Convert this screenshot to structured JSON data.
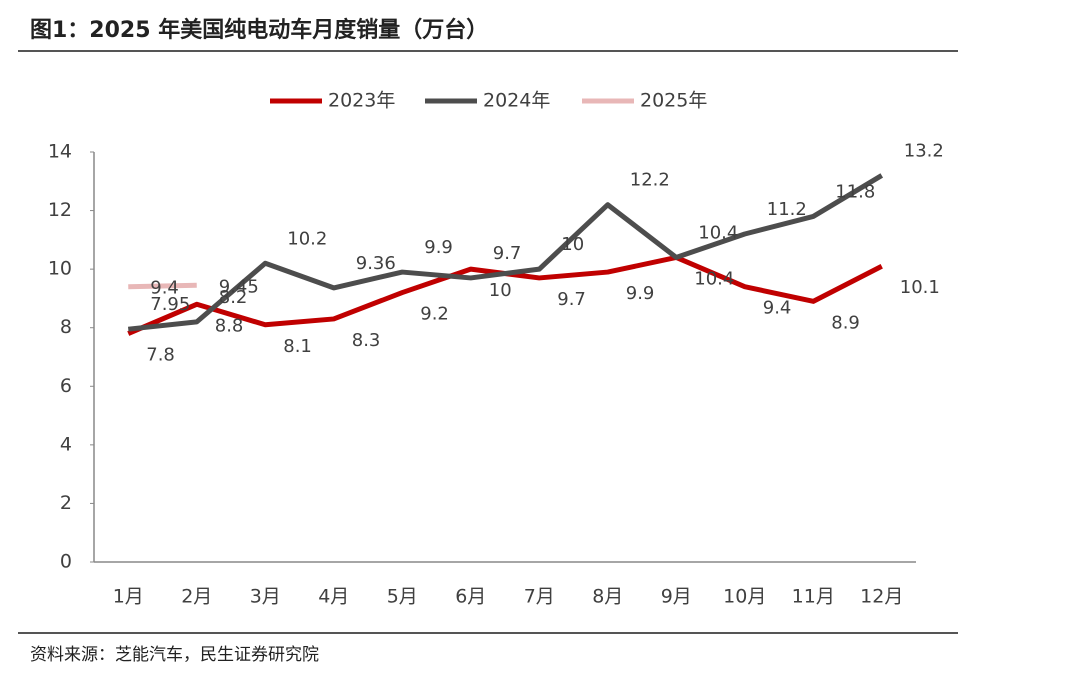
{
  "chart_data": {
    "type": "line",
    "title": "图1：2025 年美国纯电动车月度销量（万台）",
    "source": "资料来源：芝能汽车，民生证券研究院",
    "categories": [
      "1月",
      "2月",
      "3月",
      "4月",
      "5月",
      "6月",
      "7月",
      "8月",
      "9月",
      "10月",
      "11月",
      "12月"
    ],
    "series": [
      {
        "name": "2023年",
        "color": "#c00000",
        "values": [
          7.8,
          8.8,
          8.1,
          8.3,
          9.2,
          10,
          9.7,
          9.9,
          10.4,
          9.4,
          8.9,
          10.1
        ]
      },
      {
        "name": "2024年",
        "color": "#4d4d4d",
        "values": [
          7.95,
          8.2,
          10.2,
          9.36,
          9.9,
          9.7,
          10,
          12.2,
          10.4,
          11.2,
          11.8,
          13.2
        ]
      },
      {
        "name": "2025年",
        "color": "#e8b7b7",
        "values": [
          9.4,
          9.45,
          null,
          null,
          null,
          null,
          null,
          null,
          null,
          null,
          null,
          null
        ]
      }
    ],
    "ylim": [
      0,
      14
    ],
    "yticks": [
      0,
      2,
      4,
      6,
      8,
      10,
      12,
      14
    ],
    "legend": "top"
  }
}
